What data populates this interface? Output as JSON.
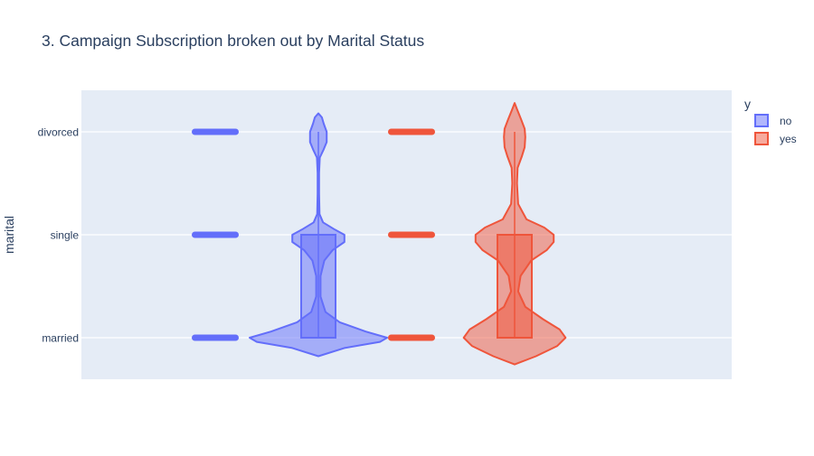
{
  "chart_data": {
    "type": "violin",
    "title": "3. Campaign Subscription broken out by Marital Status",
    "xlabel": "",
    "ylabel": "marital",
    "categories": [
      "married",
      "single",
      "divorced"
    ],
    "legend": {
      "title": "y",
      "position": "top-right"
    },
    "grid": true,
    "series": [
      {
        "name": "no",
        "color": "#636efa",
        "box": {
          "q1": "married",
          "median": "married",
          "q3": "single"
        },
        "density": [
          {
            "y": -0.18,
            "d": 0.0
          },
          {
            "y": -0.1,
            "d": 0.22
          },
          {
            "y": -0.04,
            "d": 0.52
          },
          {
            "y": 0.0,
            "d": 0.58
          },
          {
            "y": 0.06,
            "d": 0.4
          },
          {
            "y": 0.15,
            "d": 0.18
          },
          {
            "y": 0.25,
            "d": 0.06
          },
          {
            "y": 0.4,
            "d": 0.018
          },
          {
            "y": 0.6,
            "d": 0.018
          },
          {
            "y": 0.75,
            "d": 0.05
          },
          {
            "y": 0.85,
            "d": 0.12
          },
          {
            "y": 0.93,
            "d": 0.22
          },
          {
            "y": 1.0,
            "d": 0.22
          },
          {
            "y": 1.05,
            "d": 0.14
          },
          {
            "y": 1.12,
            "d": 0.04
          },
          {
            "y": 1.2,
            "d": 0.01
          },
          {
            "y": 1.4,
            "d": 0.006
          },
          {
            "y": 1.6,
            "d": 0.006
          },
          {
            "y": 1.75,
            "d": 0.012
          },
          {
            "y": 1.83,
            "d": 0.045
          },
          {
            "y": 1.9,
            "d": 0.07
          },
          {
            "y": 2.0,
            "d": 0.07
          },
          {
            "y": 2.08,
            "d": 0.045
          },
          {
            "y": 2.14,
            "d": 0.03
          },
          {
            "y": 2.18,
            "d": 0.0
          }
        ]
      },
      {
        "name": "yes",
        "color": "#ef553b",
        "box": {
          "q1": "married",
          "median": "married",
          "q3": "single"
        },
        "density": [
          {
            "y": -0.26,
            "d": 0.0
          },
          {
            "y": -0.18,
            "d": 0.18
          },
          {
            "y": -0.08,
            "d": 0.36
          },
          {
            "y": 0.0,
            "d": 0.43
          },
          {
            "y": 0.08,
            "d": 0.38
          },
          {
            "y": 0.18,
            "d": 0.24
          },
          {
            "y": 0.3,
            "d": 0.09
          },
          {
            "y": 0.45,
            "d": 0.03
          },
          {
            "y": 0.6,
            "d": 0.05
          },
          {
            "y": 0.75,
            "d": 0.14
          },
          {
            "y": 0.85,
            "d": 0.27
          },
          {
            "y": 0.93,
            "d": 0.33
          },
          {
            "y": 1.0,
            "d": 0.33
          },
          {
            "y": 1.07,
            "d": 0.25
          },
          {
            "y": 1.15,
            "d": 0.1
          },
          {
            "y": 1.3,
            "d": 0.03
          },
          {
            "y": 1.5,
            "d": 0.02
          },
          {
            "y": 1.65,
            "d": 0.025
          },
          {
            "y": 1.76,
            "d": 0.06
          },
          {
            "y": 1.85,
            "d": 0.085
          },
          {
            "y": 1.95,
            "d": 0.09
          },
          {
            "y": 2.03,
            "d": 0.085
          },
          {
            "y": 2.12,
            "d": 0.055
          },
          {
            "y": 2.22,
            "d": 0.02
          },
          {
            "y": 2.28,
            "d": 0.0
          }
        ]
      }
    ]
  }
}
